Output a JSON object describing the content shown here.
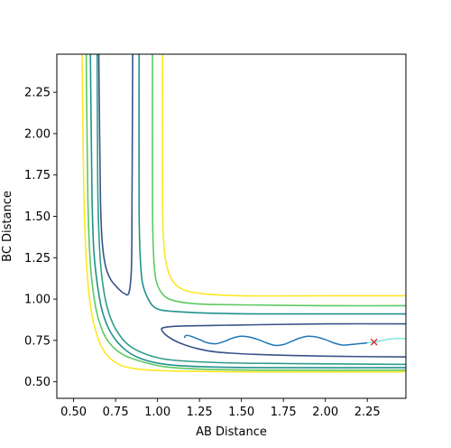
{
  "chart_data": {
    "type": "line",
    "title": "",
    "xlabel": "AB Distance",
    "ylabel": "BC Distance",
    "xlim": [
      0.4,
      2.48
    ],
    "ylim": [
      0.4,
      2.48
    ],
    "x_ticks": [
      0.5,
      0.75,
      1.0,
      1.25,
      1.5,
      1.75,
      2.0,
      2.25
    ],
    "x_tick_labels": [
      "0.50",
      "0.75",
      "1.00",
      "1.25",
      "1.50",
      "1.75",
      "2.00",
      "2.25"
    ],
    "y_ticks": [
      0.5,
      0.75,
      1.0,
      1.25,
      1.5,
      1.75,
      2.0,
      2.25
    ],
    "y_tick_labels": [
      "0.50",
      "0.75",
      "1.00",
      "1.25",
      "1.50",
      "1.75",
      "2.00",
      "2.25"
    ],
    "grid": false,
    "legend": "none",
    "contours": [
      {
        "color": "#fde725",
        "points": [
          [
            0.55,
            2.48
          ],
          [
            0.555,
            2.1
          ],
          [
            0.56,
            1.7
          ],
          [
            0.57,
            1.35
          ],
          [
            0.585,
            1.1
          ],
          [
            0.61,
            0.9
          ],
          [
            0.65,
            0.75
          ],
          [
            0.7,
            0.66
          ],
          [
            0.78,
            0.6
          ],
          [
            0.9,
            0.575
          ],
          [
            1.1,
            0.565
          ],
          [
            1.5,
            0.56
          ],
          [
            2.0,
            0.56
          ],
          [
            2.48,
            0.56
          ]
        ]
      },
      {
        "color": "#fde725",
        "points": [
          [
            1.03,
            2.48
          ],
          [
            1.03,
            1.6
          ],
          [
            1.04,
            1.3
          ],
          [
            1.07,
            1.15
          ],
          [
            1.13,
            1.07
          ],
          [
            1.25,
            1.035
          ],
          [
            1.5,
            1.02
          ],
          [
            2.0,
            1.02
          ],
          [
            2.48,
            1.02
          ]
        ]
      },
      {
        "color": "#21918c",
        "points": [
          [
            0.6,
            2.48
          ],
          [
            0.605,
            2.0
          ],
          [
            0.61,
            1.6
          ],
          [
            0.62,
            1.3
          ],
          [
            0.64,
            1.1
          ],
          [
            0.67,
            0.93
          ],
          [
            0.72,
            0.8
          ],
          [
            0.8,
            0.7
          ],
          [
            0.9,
            0.64
          ],
          [
            1.05,
            0.605
          ],
          [
            1.3,
            0.59
          ],
          [
            1.7,
            0.585
          ],
          [
            2.48,
            0.585
          ]
        ]
      },
      {
        "color": "#21918c",
        "points": [
          [
            0.89,
            2.48
          ],
          [
            0.89,
            1.6
          ],
          [
            0.895,
            1.3
          ],
          [
            0.91,
            1.1
          ],
          [
            0.95,
            0.99
          ],
          [
            1.0,
            0.94
          ],
          [
            1.1,
            0.925
          ],
          [
            1.3,
            0.915
          ],
          [
            1.6,
            0.91
          ],
          [
            2.0,
            0.91
          ],
          [
            2.48,
            0.91
          ]
        ]
      },
      {
        "color": "#5ec962",
        "points": [
          [
            0.575,
            2.48
          ],
          [
            0.58,
            2.0
          ],
          [
            0.585,
            1.6
          ],
          [
            0.595,
            1.3
          ],
          [
            0.61,
            1.1
          ],
          [
            0.64,
            0.91
          ],
          [
            0.69,
            0.77
          ],
          [
            0.77,
            0.68
          ],
          [
            0.88,
            0.63
          ],
          [
            1.05,
            0.59
          ],
          [
            1.3,
            0.575
          ],
          [
            1.7,
            0.57
          ],
          [
            2.48,
            0.57
          ]
        ]
      },
      {
        "color": "#5ec962",
        "points": [
          [
            0.97,
            2.48
          ],
          [
            0.97,
            1.6
          ],
          [
            0.975,
            1.3
          ],
          [
            0.99,
            1.12
          ],
          [
            1.03,
            1.03
          ],
          [
            1.1,
            0.99
          ],
          [
            1.25,
            0.97
          ],
          [
            1.5,
            0.965
          ],
          [
            2.0,
            0.96
          ],
          [
            2.48,
            0.96
          ]
        ]
      },
      {
        "color": "#2f9e88",
        "points": [
          [
            0.64,
            2.48
          ],
          [
            0.642,
            2.0
          ],
          [
            0.645,
            1.6
          ],
          [
            0.655,
            1.3
          ],
          [
            0.67,
            1.12
          ],
          [
            0.7,
            0.95
          ],
          [
            0.75,
            0.82
          ],
          [
            0.83,
            0.72
          ],
          [
            0.95,
            0.66
          ],
          [
            1.1,
            0.63
          ],
          [
            1.4,
            0.615
          ],
          [
            1.8,
            0.61
          ],
          [
            2.48,
            0.605
          ]
        ]
      },
      {
        "color": "#3b528b",
        "points": [
          [
            0.65,
            2.48
          ],
          [
            0.655,
            2.0
          ],
          [
            0.66,
            1.6
          ],
          [
            0.67,
            1.35
          ],
          [
            0.69,
            1.2
          ],
          [
            0.72,
            1.12
          ],
          [
            0.76,
            1.07
          ],
          [
            0.8,
            1.035
          ],
          [
            0.83,
            1.04
          ],
          [
            0.845,
            1.2
          ],
          [
            0.848,
            1.6
          ],
          [
            0.85,
            2.0
          ],
          [
            0.852,
            2.48
          ]
        ]
      },
      {
        "color": "#3b528b",
        "points": [
          [
            2.48,
            0.85
          ],
          [
            2.0,
            0.85
          ],
          [
            1.6,
            0.845
          ],
          [
            1.3,
            0.84
          ],
          [
            1.1,
            0.835
          ],
          [
            1.03,
            0.825
          ],
          [
            1.03,
            0.805
          ],
          [
            1.06,
            0.775
          ],
          [
            1.12,
            0.74
          ],
          [
            1.22,
            0.705
          ],
          [
            1.35,
            0.68
          ],
          [
            1.6,
            0.665
          ],
          [
            2.0,
            0.655
          ],
          [
            2.48,
            0.65
          ]
        ]
      }
    ],
    "series": [
      {
        "color": "#1f77b4",
        "points": [
          [
            1.16,
            0.765
          ],
          [
            1.17,
            0.78
          ],
          [
            1.2,
            0.775
          ],
          [
            1.25,
            0.755
          ],
          [
            1.3,
            0.735
          ],
          [
            1.35,
            0.73
          ],
          [
            1.4,
            0.745
          ],
          [
            1.45,
            0.765
          ],
          [
            1.5,
            0.775
          ],
          [
            1.55,
            0.77
          ],
          [
            1.6,
            0.755
          ],
          [
            1.65,
            0.735
          ],
          [
            1.7,
            0.72
          ],
          [
            1.75,
            0.725
          ],
          [
            1.8,
            0.745
          ],
          [
            1.85,
            0.765
          ],
          [
            1.9,
            0.775
          ],
          [
            1.95,
            0.77
          ],
          [
            2.0,
            0.755
          ],
          [
            2.05,
            0.735
          ],
          [
            2.1,
            0.722
          ],
          [
            2.15,
            0.725
          ],
          [
            2.2,
            0.73
          ],
          [
            2.25,
            0.735
          ]
        ]
      },
      {
        "color": "#40e0d0",
        "points": [
          [
            2.25,
            0.735
          ],
          [
            2.3,
            0.742
          ],
          [
            2.35,
            0.752
          ],
          [
            2.4,
            0.76
          ],
          [
            2.45,
            0.762
          ],
          [
            2.48,
            0.76
          ]
        ]
      }
    ],
    "marker": {
      "x": 2.29,
      "y": 0.74,
      "symbol": "x",
      "color": "#d62728"
    }
  }
}
